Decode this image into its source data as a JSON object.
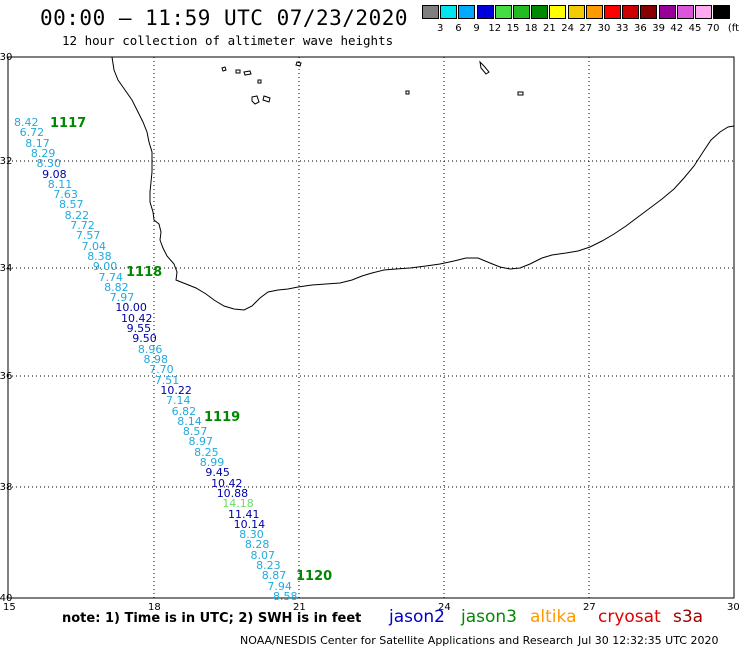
{
  "header": {
    "title": "00:00 – 11:59 UTC 07/23/2020",
    "subtitle": "12 hour collection of altimeter wave heights"
  },
  "colorbar": {
    "unit": "(ft)",
    "colors": [
      "#7f7f7f",
      "#00e5ee",
      "#00aaff",
      "#0000dd",
      "#44dd44",
      "#22bb22",
      "#008800",
      "#ffff00",
      "#f0cc00",
      "#ff9900",
      "#ff0000",
      "#cc0000",
      "#880000",
      "#990099",
      "#dd55dd",
      "#ffaaee",
      "#000000"
    ],
    "labels": [
      "3",
      "6",
      "9",
      "12",
      "15",
      "18",
      "21",
      "24",
      "27",
      "30",
      "33",
      "36",
      "39",
      "42",
      "45",
      "70"
    ]
  },
  "axes": {
    "lat_labels": [
      "-30",
      "-32",
      "-34",
      "-36",
      "-38",
      "-40"
    ],
    "lon_labels": [
      "15",
      "18",
      "21",
      "24",
      "27",
      "30"
    ]
  },
  "pass_labels": [
    "1117",
    "1118",
    "1119",
    "1120"
  ],
  "swh_points": [
    {
      "v": "8.42",
      "c": "#22aadd"
    },
    {
      "v": "6.72",
      "c": "#22aadd"
    },
    {
      "v": "8.17",
      "c": "#22aadd"
    },
    {
      "v": "8.29",
      "c": "#22aadd"
    },
    {
      "v": "8.30",
      "c": "#22aadd"
    },
    {
      "v": "9.08",
      "c": "#0000aa"
    },
    {
      "v": "8.11",
      "c": "#22aadd"
    },
    {
      "v": "7.63",
      "c": "#22aadd"
    },
    {
      "v": "8.57",
      "c": "#22aadd"
    },
    {
      "v": "8.22",
      "c": "#22aadd"
    },
    {
      "v": "7.72",
      "c": "#22aadd"
    },
    {
      "v": "7.57",
      "c": "#22aadd"
    },
    {
      "v": "7.04",
      "c": "#22aadd"
    },
    {
      "v": "8.38",
      "c": "#22aadd"
    },
    {
      "v": "9.00",
      "c": "#22aadd"
    },
    {
      "v": "7.74",
      "c": "#22aadd"
    },
    {
      "v": "8.82",
      "c": "#22aadd"
    },
    {
      "v": "7.97",
      "c": "#22aadd"
    },
    {
      "v": "10.00",
      "c": "#0000aa"
    },
    {
      "v": "10.42",
      "c": "#0000aa"
    },
    {
      "v": "9.55",
      "c": "#0000aa"
    },
    {
      "v": "9.50",
      "c": "#0000aa"
    },
    {
      "v": "8.96",
      "c": "#22aadd"
    },
    {
      "v": "8.98",
      "c": "#22aadd"
    },
    {
      "v": "7.70",
      "c": "#22aadd"
    },
    {
      "v": "7.51",
      "c": "#22aadd"
    },
    {
      "v": "10.22",
      "c": "#0000aa"
    },
    {
      "v": "7.14",
      "c": "#22aadd"
    },
    {
      "v": "6.82",
      "c": "#22aadd"
    },
    {
      "v": "8.14",
      "c": "#22aadd"
    },
    {
      "v": "8.57",
      "c": "#22aadd"
    },
    {
      "v": "8.97",
      "c": "#22aadd"
    },
    {
      "v": "8.25",
      "c": "#22aadd"
    },
    {
      "v": "8.99",
      "c": "#22aadd"
    },
    {
      "v": "9.45",
      "c": "#0000aa"
    },
    {
      "v": "10.42",
      "c": "#0000aa"
    },
    {
      "v": "10.88",
      "c": "#0000aa"
    },
    {
      "v": "14.18",
      "c": "#66dd66"
    },
    {
      "v": "11.41",
      "c": "#0000aa"
    },
    {
      "v": "10.14",
      "c": "#0000aa"
    },
    {
      "v": "8.30",
      "c": "#22aadd"
    },
    {
      "v": "8.28",
      "c": "#22aadd"
    },
    {
      "v": "8.07",
      "c": "#22aadd"
    },
    {
      "v": "8.23",
      "c": "#22aadd"
    },
    {
      "v": "8.87",
      "c": "#22aadd"
    },
    {
      "v": "7.94",
      "c": "#22aadd"
    },
    {
      "v": "8.58",
      "c": "#22aadd"
    }
  ],
  "footer": {
    "note": "note: 1) Time is in UTC; 2) SWH is in feet",
    "satellites": [
      {
        "name": "jason2",
        "color": "#0000cc"
      },
      {
        "name": "jason3",
        "color": "#008800"
      },
      {
        "name": "altika",
        "color": "#ff9900"
      },
      {
        "name": "cryosat",
        "color": "#dd0000"
      },
      {
        "name": "s3a",
        "color": "#990000"
      }
    ],
    "credit": "NOAA/NESDIS Center for Satellite Applications and Research",
    "timestamp": "Jul 30 12:32:35 UTC 2020"
  }
}
